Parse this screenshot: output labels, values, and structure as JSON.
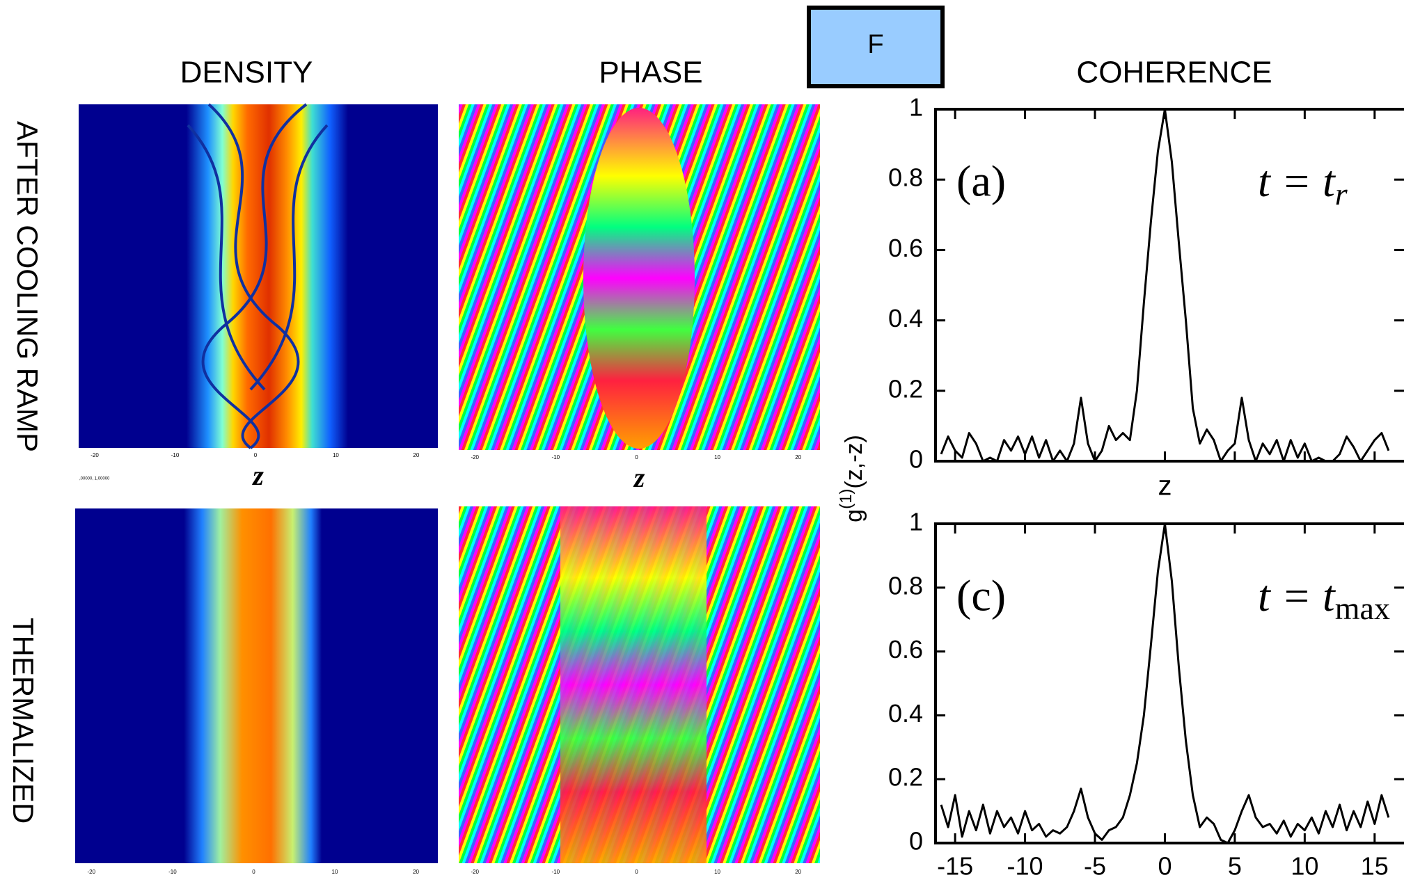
{
  "header": {
    "button": "F",
    "panels": {
      "density": "DENSITY",
      "phase": "PHASE",
      "coherence": "COHERENCE"
    },
    "rows": [
      "AFTER COOLING RAMP",
      "THERMALIZED"
    ]
  },
  "image_axes": {
    "xlim": [
      -22,
      22.7
    ],
    "xticks": [
      -20,
      -10,
      0,
      10,
      20
    ],
    "xlabel": "z",
    "scale_note": ",00000, 1,00000"
  },
  "ylabel": {
    "base": "g",
    "sup": "(1)",
    "rest": "(z,-z)"
  },
  "chart_data": [
    {
      "type": "line",
      "panel_label": "(a)",
      "annotation": {
        "text": "t = t",
        "sub": "r"
      },
      "xlabel": "z",
      "color": "#000000",
      "grid": false,
      "show_xtick_labels": false,
      "xlim": [
        -16.4,
        17.1
      ],
      "ylim": [
        0,
        1
      ],
      "yticks": [
        0,
        0.2,
        0.4,
        0.6,
        0.8,
        1
      ],
      "xticks": [
        -15,
        -10,
        -5,
        0,
        5,
        10,
        15
      ],
      "x": [
        -16,
        -15.5,
        -15,
        -14.5,
        -14,
        -13.5,
        -13,
        -12.5,
        -12,
        -11.5,
        -11,
        -10.5,
        -10,
        -9.5,
        -9,
        -8.5,
        -8,
        -7.5,
        -7,
        -6.5,
        -6,
        -5.5,
        -5,
        -4.5,
        -4,
        -3.5,
        -3,
        -2.5,
        -2,
        -1.5,
        -1,
        -0.5,
        0,
        0.5,
        1,
        1.5,
        2,
        2.5,
        3,
        3.5,
        4,
        4.5,
        5,
        5.5,
        6,
        6.5,
        7,
        7.5,
        8,
        8.5,
        9,
        9.5,
        10,
        10.5,
        11,
        11.5,
        12,
        12.5,
        13,
        13.5,
        14,
        14.5,
        15,
        15.5,
        16
      ],
      "values": [
        0.02,
        0.07,
        0.03,
        0.01,
        0.08,
        0.05,
        0.0,
        0.01,
        0.0,
        0.06,
        0.03,
        0.07,
        0.02,
        0.07,
        0.01,
        0.06,
        0.0,
        0.03,
        0.0,
        0.05,
        0.18,
        0.05,
        0.0,
        0.03,
        0.1,
        0.06,
        0.08,
        0.06,
        0.2,
        0.45,
        0.68,
        0.88,
        1,
        0.85,
        0.62,
        0.4,
        0.15,
        0.05,
        0.09,
        0.06,
        0.0,
        0.03,
        0.05,
        0.18,
        0.06,
        0.0,
        0.05,
        0.02,
        0.06,
        0.0,
        0.06,
        0.01,
        0.05,
        0.0,
        0.01,
        0.0,
        0.0,
        0.02,
        0.07,
        0.04,
        0.0,
        0.03,
        0.06,
        0.08,
        0.03
      ]
    },
    {
      "type": "line",
      "panel_label": "(c)",
      "annotation": {
        "text": "t = t",
        "sub": "max"
      },
      "color": "#000000",
      "grid": false,
      "show_xtick_labels": true,
      "xlim": [
        -16.4,
        17.1
      ],
      "ylim": [
        0,
        1
      ],
      "yticks": [
        0,
        0.2,
        0.4,
        0.6,
        0.8,
        1
      ],
      "xticks": [
        -15,
        -10,
        -5,
        0,
        5,
        10,
        15
      ],
      "x": [
        -16,
        -15.5,
        -15,
        -14.5,
        -14,
        -13.5,
        -13,
        -12.5,
        -12,
        -11.5,
        -11,
        -10.5,
        -10,
        -9.5,
        -9,
        -8.5,
        -8,
        -7.5,
        -7,
        -6.5,
        -6,
        -5.5,
        -5,
        -4.5,
        -4,
        -3.5,
        -3,
        -2.5,
        -2,
        -1.5,
        -1,
        -0.5,
        0,
        0.5,
        1,
        1.5,
        2,
        2.5,
        3,
        3.5,
        4,
        4.5,
        5,
        5.5,
        6,
        6.5,
        7,
        7.5,
        8,
        8.5,
        9,
        9.5,
        10,
        10.5,
        11,
        11.5,
        12,
        12.5,
        13,
        13.5,
        14,
        14.5,
        15,
        15.5,
        16
      ],
      "values": [
        0.12,
        0.05,
        0.15,
        0.02,
        0.1,
        0.04,
        0.12,
        0.03,
        0.1,
        0.05,
        0.08,
        0.03,
        0.1,
        0.04,
        0.06,
        0.02,
        0.04,
        0.03,
        0.05,
        0.1,
        0.17,
        0.08,
        0.03,
        0.01,
        0.04,
        0.05,
        0.08,
        0.15,
        0.25,
        0.4,
        0.62,
        0.85,
        1,
        0.82,
        0.55,
        0.32,
        0.15,
        0.05,
        0.08,
        0.06,
        0.01,
        0.0,
        0.04,
        0.1,
        0.15,
        0.08,
        0.05,
        0.06,
        0.03,
        0.07,
        0.02,
        0.06,
        0.04,
        0.08,
        0.03,
        0.1,
        0.05,
        0.12,
        0.04,
        0.1,
        0.05,
        0.13,
        0.06,
        0.15,
        0.08
      ]
    }
  ]
}
